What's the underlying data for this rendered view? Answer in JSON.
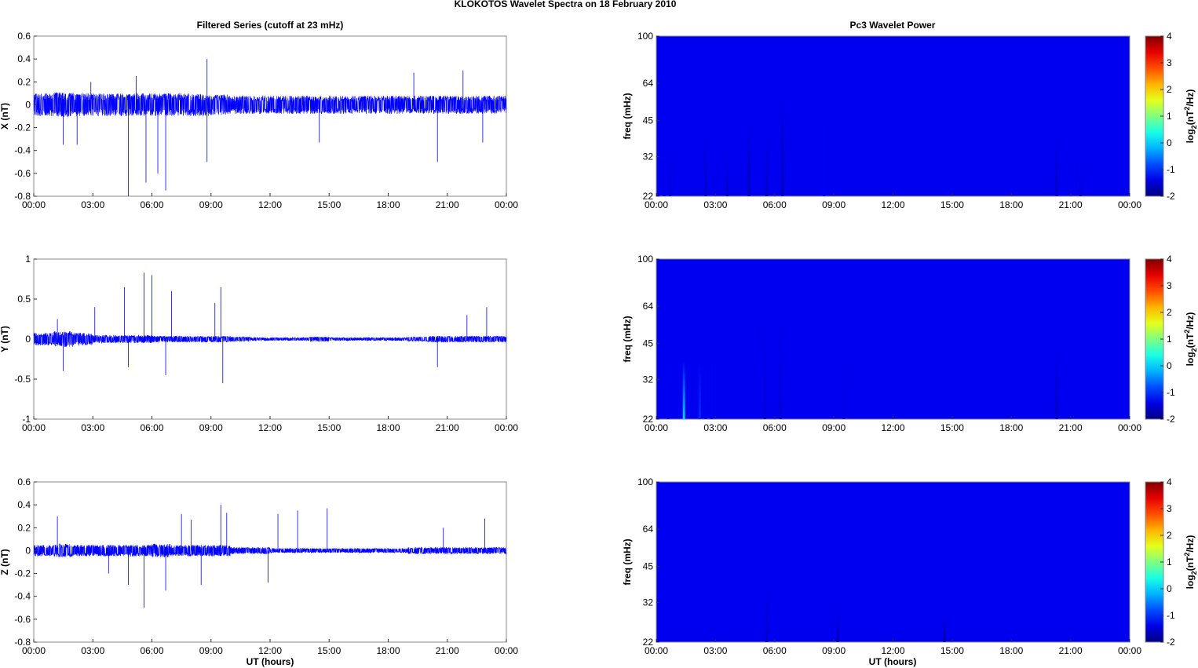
{
  "title": "KLOKOTOS Wavelet Spectra on 18 February  2010",
  "left_title": "Filtered Series (cutoff at 23 mHz)",
  "right_title": "Pc3 Wavelet Power",
  "xlabel": "UT (hours)",
  "colors": {
    "series": "#0000ff",
    "axis": "#888888"
  },
  "chart_data": [
    {
      "type": "line",
      "name": "X",
      "ylabel": "X (nT)",
      "ylim": [
        -0.8,
        0.6
      ],
      "yticks": [
        0.6,
        0.4,
        0.2,
        0,
        -0.2,
        -0.4,
        -0.6,
        -0.8
      ],
      "xlim": [
        0,
        24
      ],
      "xticks": [
        "00:00",
        "03:00",
        "06:00",
        "09:00",
        "12:00",
        "15:00",
        "18:00",
        "21:00",
        "00:00"
      ],
      "noise_envelope_per_hour": [
        0.1,
        0.11,
        0.1,
        0.1,
        0.1,
        0.1,
        0.1,
        0.1,
        0.1,
        0.09,
        0.08,
        0.08,
        0.08,
        0.08,
        0.08,
        0.08,
        0.08,
        0.08,
        0.08,
        0.08,
        0.08,
        0.08,
        0.08,
        0.08
      ],
      "spikes": [
        [
          1.5,
          -0.35
        ],
        [
          2.2,
          -0.35
        ],
        [
          2.9,
          0.2
        ],
        [
          4.8,
          -0.8
        ],
        [
          5.2,
          0.25
        ],
        [
          5.7,
          -0.68
        ],
        [
          6.3,
          -0.6
        ],
        [
          6.7,
          -0.75
        ],
        [
          8.8,
          0.4
        ],
        [
          8.8,
          -0.5
        ],
        [
          14.5,
          -0.33
        ],
        [
          19.3,
          0.28
        ],
        [
          20.5,
          -0.5
        ],
        [
          21.8,
          0.3
        ],
        [
          22.8,
          -0.33
        ]
      ]
    },
    {
      "type": "line",
      "name": "Y",
      "ylabel": "Y (nT)",
      "ylim": [
        -1,
        1
      ],
      "yticks": [
        1,
        0.5,
        0,
        -0.5,
        -1
      ],
      "xlim": [
        0,
        24
      ],
      "xticks": [
        "00:00",
        "03:00",
        "06:00",
        "09:00",
        "12:00",
        "15:00",
        "18:00",
        "21:00",
        "00:00"
      ],
      "noise_envelope_per_hour": [
        0.08,
        0.1,
        0.08,
        0.05,
        0.05,
        0.05,
        0.04,
        0.04,
        0.04,
        0.04,
        0.03,
        0.02,
        0.02,
        0.02,
        0.03,
        0.02,
        0.02,
        0.02,
        0.02,
        0.03,
        0.04,
        0.04,
        0.04,
        0.04
      ],
      "spikes": [
        [
          1.2,
          0.25
        ],
        [
          1.5,
          -0.4
        ],
        [
          3.1,
          0.4
        ],
        [
          4.6,
          0.65
        ],
        [
          4.8,
          -0.35
        ],
        [
          5.6,
          0.83
        ],
        [
          6.0,
          0.8
        ],
        [
          6.7,
          -0.45
        ],
        [
          7.0,
          0.6
        ],
        [
          9.2,
          0.45
        ],
        [
          9.5,
          0.65
        ],
        [
          9.6,
          -0.55
        ],
        [
          20.5,
          -0.35
        ],
        [
          22.0,
          0.3
        ],
        [
          23.0,
          0.4
        ]
      ]
    },
    {
      "type": "line",
      "name": "Z",
      "ylabel": "Z (nT)",
      "ylim": [
        -0.8,
        0.6
      ],
      "yticks": [
        0.6,
        0.4,
        0.2,
        0,
        -0.2,
        -0.4,
        -0.6,
        -0.8
      ],
      "xlim": [
        0,
        24
      ],
      "xticks": [
        "00:00",
        "03:00",
        "06:00",
        "09:00",
        "12:00",
        "15:00",
        "18:00",
        "21:00",
        "00:00"
      ],
      "noise_envelope_per_hour": [
        0.05,
        0.06,
        0.05,
        0.05,
        0.05,
        0.05,
        0.06,
        0.05,
        0.05,
        0.05,
        0.03,
        0.03,
        0.02,
        0.02,
        0.02,
        0.02,
        0.02,
        0.02,
        0.02,
        0.03,
        0.03,
        0.03,
        0.03,
        0.03
      ],
      "spikes": [
        [
          1.2,
          0.3
        ],
        [
          3.8,
          -0.2
        ],
        [
          4.8,
          -0.3
        ],
        [
          5.6,
          -0.5
        ],
        [
          6.7,
          -0.35
        ],
        [
          7.5,
          0.32
        ],
        [
          8.0,
          0.27
        ],
        [
          8.5,
          -0.3
        ],
        [
          9.5,
          0.4
        ],
        [
          9.8,
          0.33
        ],
        [
          11.9,
          -0.28
        ],
        [
          12.4,
          0.32
        ],
        [
          13.4,
          0.35
        ],
        [
          14.9,
          0.37
        ],
        [
          20.8,
          0.2
        ],
        [
          22.9,
          0.28
        ]
      ]
    },
    {
      "type": "heatmap",
      "name": "X power",
      "ylabel": "freq (mHz)",
      "ylim": [
        22,
        100
      ],
      "yscale": "log",
      "yticks": [
        100,
        64,
        45,
        32,
        22
      ],
      "xticks": [
        "00:00",
        "03:00",
        "06:00",
        "09:00",
        "12:00",
        "15:00",
        "18:00",
        "21:00",
        "00:00"
      ],
      "background_value": -2,
      "clim": [
        -2,
        4
      ],
      "cticks": [
        4,
        3,
        2,
        1,
        0,
        -1,
        -2
      ],
      "clabel": "log2(nT2/Hz)",
      "streaks": [
        [
          0.4,
          40,
          -1.4
        ],
        [
          0.7,
          35,
          -1.5
        ],
        [
          2.5,
          40,
          -1.6
        ],
        [
          3.6,
          35,
          -1.6
        ],
        [
          4.7,
          45,
          -1.7
        ],
        [
          5.6,
          40,
          -1.6
        ],
        [
          6.4,
          60,
          -1.7
        ],
        [
          8.5,
          55,
          -1.3
        ],
        [
          20.3,
          40,
          -1.6
        ],
        [
          21.5,
          30,
          -1.5
        ]
      ]
    },
    {
      "type": "heatmap",
      "name": "Y power",
      "ylabel": "freq (mHz)",
      "ylim": [
        22,
        100
      ],
      "yscale": "log",
      "yticks": [
        100,
        64,
        45,
        32,
        22
      ],
      "xticks": [
        "00:00",
        "03:00",
        "06:00",
        "09:00",
        "12:00",
        "15:00",
        "18:00",
        "21:00",
        "00:00"
      ],
      "background_value": -2,
      "clim": [
        -2,
        4
      ],
      "cticks": [
        4,
        3,
        2,
        1,
        0,
        -1,
        -2
      ],
      "clabel": "log2(nT2/Hz)",
      "streaks": [
        [
          0.6,
          45,
          -1.3
        ],
        [
          1.4,
          38,
          0
        ],
        [
          2.2,
          38,
          -1
        ],
        [
          2.5,
          40,
          -1.3
        ],
        [
          2.8,
          45,
          -1.3
        ],
        [
          5.5,
          58,
          -1.5
        ],
        [
          6.3,
          60,
          -1.5
        ],
        [
          9.5,
          42,
          -1.4
        ],
        [
          20.3,
          45,
          -1.6
        ]
      ]
    },
    {
      "type": "heatmap",
      "name": "Z power",
      "ylabel": "freq (mHz)",
      "ylim": [
        22,
        100
      ],
      "yscale": "log",
      "yticks": [
        100,
        64,
        45,
        32,
        22
      ],
      "xticks": [
        "00:00",
        "03:00",
        "06:00",
        "09:00",
        "12:00",
        "15:00",
        "18:00",
        "21:00",
        "00:00"
      ],
      "background_value": -2,
      "clim": [
        -2,
        4
      ],
      "cticks": [
        4,
        3,
        2,
        1,
        0,
        -1,
        -2
      ],
      "clabel": "log2(nT2/Hz)",
      "streaks": [
        [
          5.6,
          36,
          -1.6
        ],
        [
          9.2,
          30,
          -1.7
        ],
        [
          14.6,
          28,
          -1.8
        ]
      ]
    }
  ]
}
